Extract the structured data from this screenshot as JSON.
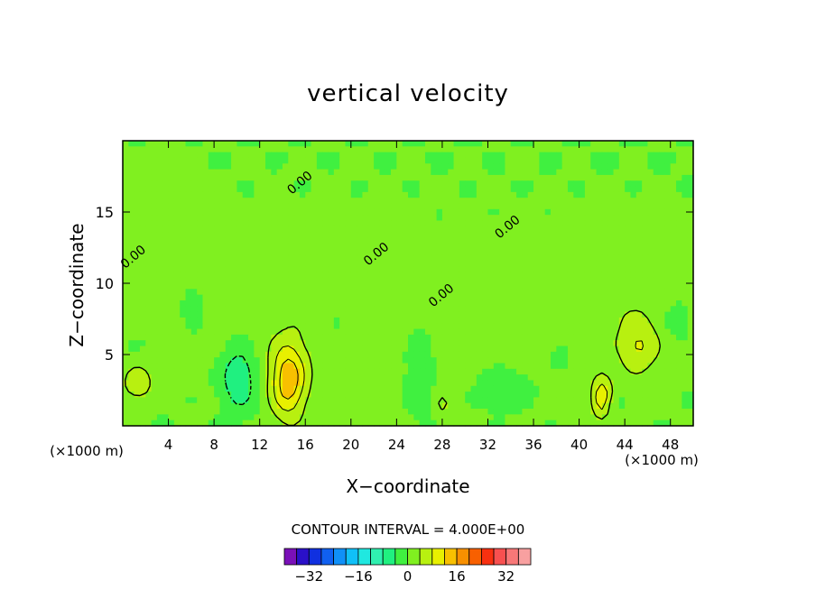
{
  "chart_data": {
    "type": "heatmap",
    "title": "vertical velocity",
    "xlabel": "X−coordinate",
    "ylabel": "Z−coordinate",
    "x_unit_label": "(×1000 m)",
    "z_unit_label": "(×1000 m)",
    "xlim": [
      0,
      50
    ],
    "ylim": [
      0,
      20
    ],
    "x_ticks": [
      4,
      8,
      12,
      16,
      20,
      24,
      28,
      32,
      36,
      40,
      44,
      48
    ],
    "y_ticks": [
      5,
      10,
      15
    ],
    "contour_interval_text": "CONTOUR INTERVAL = 4.000E+00",
    "contour_labels": [
      {
        "text": "0.00",
        "x": 14.8,
        "y": 16.2
      },
      {
        "text": "0.00",
        "x": 21.5,
        "y": 11.2
      },
      {
        "text": "0.00",
        "x": 27.2,
        "y": 8.3
      },
      {
        "text": "0.00",
        "x": 33.0,
        "y": 13.1
      },
      {
        "text": "0.00",
        "x": 0.2,
        "y": 11.0
      }
    ],
    "background_value": 0,
    "features": [
      {
        "x": 14.5,
        "z": 3.2,
        "peak": 14,
        "rx": 1.5,
        "rz": 2.6
      },
      {
        "x": 1.3,
        "z": 3.0,
        "peak": 7,
        "rx": 1.4,
        "rz": 1.3
      },
      {
        "x": 45.2,
        "z": 5.5,
        "peak": 7,
        "rx": 1.7,
        "rz": 1.8
      },
      {
        "x": 42.0,
        "z": 2.0,
        "peak": 10,
        "rx": 0.9,
        "rz": 1.6
      },
      {
        "x": 28.0,
        "z": 1.5,
        "peak": 4,
        "rx": 0.8,
        "rz": 0.8
      },
      {
        "x": 10.2,
        "z": 3.3,
        "peak": -9,
        "rx": 1.5,
        "rz": 2.2
      },
      {
        "x": 26.0,
        "z": 4.0,
        "peak": -5,
        "rx": 1.2,
        "rz": 3.0
      },
      {
        "x": 33.5,
        "z": 2.7,
        "peak": -5,
        "rx": 2.3,
        "rz": 1.3
      },
      {
        "x": 38.3,
        "z": 5.0,
        "peak": -4,
        "rx": 0.9,
        "rz": 1.0
      },
      {
        "x": 6.2,
        "z": 8.0,
        "peak": -4,
        "rx": 0.8,
        "rz": 1.2
      },
      {
        "x": 19.0,
        "z": 7.2,
        "peak": -3,
        "rx": 0.6,
        "rz": 1.2
      },
      {
        "x": 48.5,
        "z": 7.5,
        "peak": -4,
        "rx": 1.0,
        "rz": 1.4
      },
      {
        "x": 43.0,
        "z": 1.5,
        "peak": -3,
        "rx": 0.7,
        "rz": 0.7
      },
      {
        "x": 16.0,
        "z": 7.0,
        "peak": 2,
        "rx": 10.0,
        "rz": 7.0
      },
      {
        "x": 36.0,
        "z": 7.5,
        "peak": 2,
        "rx": 14.0,
        "rz": 6.0
      },
      {
        "x": 3.0,
        "z": 14.0,
        "peak": 2,
        "rx": 4.0,
        "rz": 4.0
      },
      {
        "x": 45.0,
        "z": 10.0,
        "peak": 2,
        "rx": 5.0,
        "rz": 4.0
      }
    ],
    "colorbar": {
      "colors": [
        "#7a10b8",
        "#2a10c8",
        "#1030e0",
        "#1060f0",
        "#1090f8",
        "#10c0f8",
        "#20e8e0",
        "#30f0b0",
        "#20f080",
        "#40f040",
        "#80f020",
        "#b8f010",
        "#e8f000",
        "#f8c000",
        "#f89000",
        "#f86000",
        "#f83010",
        "#f85050",
        "#f87878",
        "#f8a0a0"
      ],
      "labels": [
        "−32",
        "−16",
        "0",
        "16",
        "32"
      ]
    }
  }
}
